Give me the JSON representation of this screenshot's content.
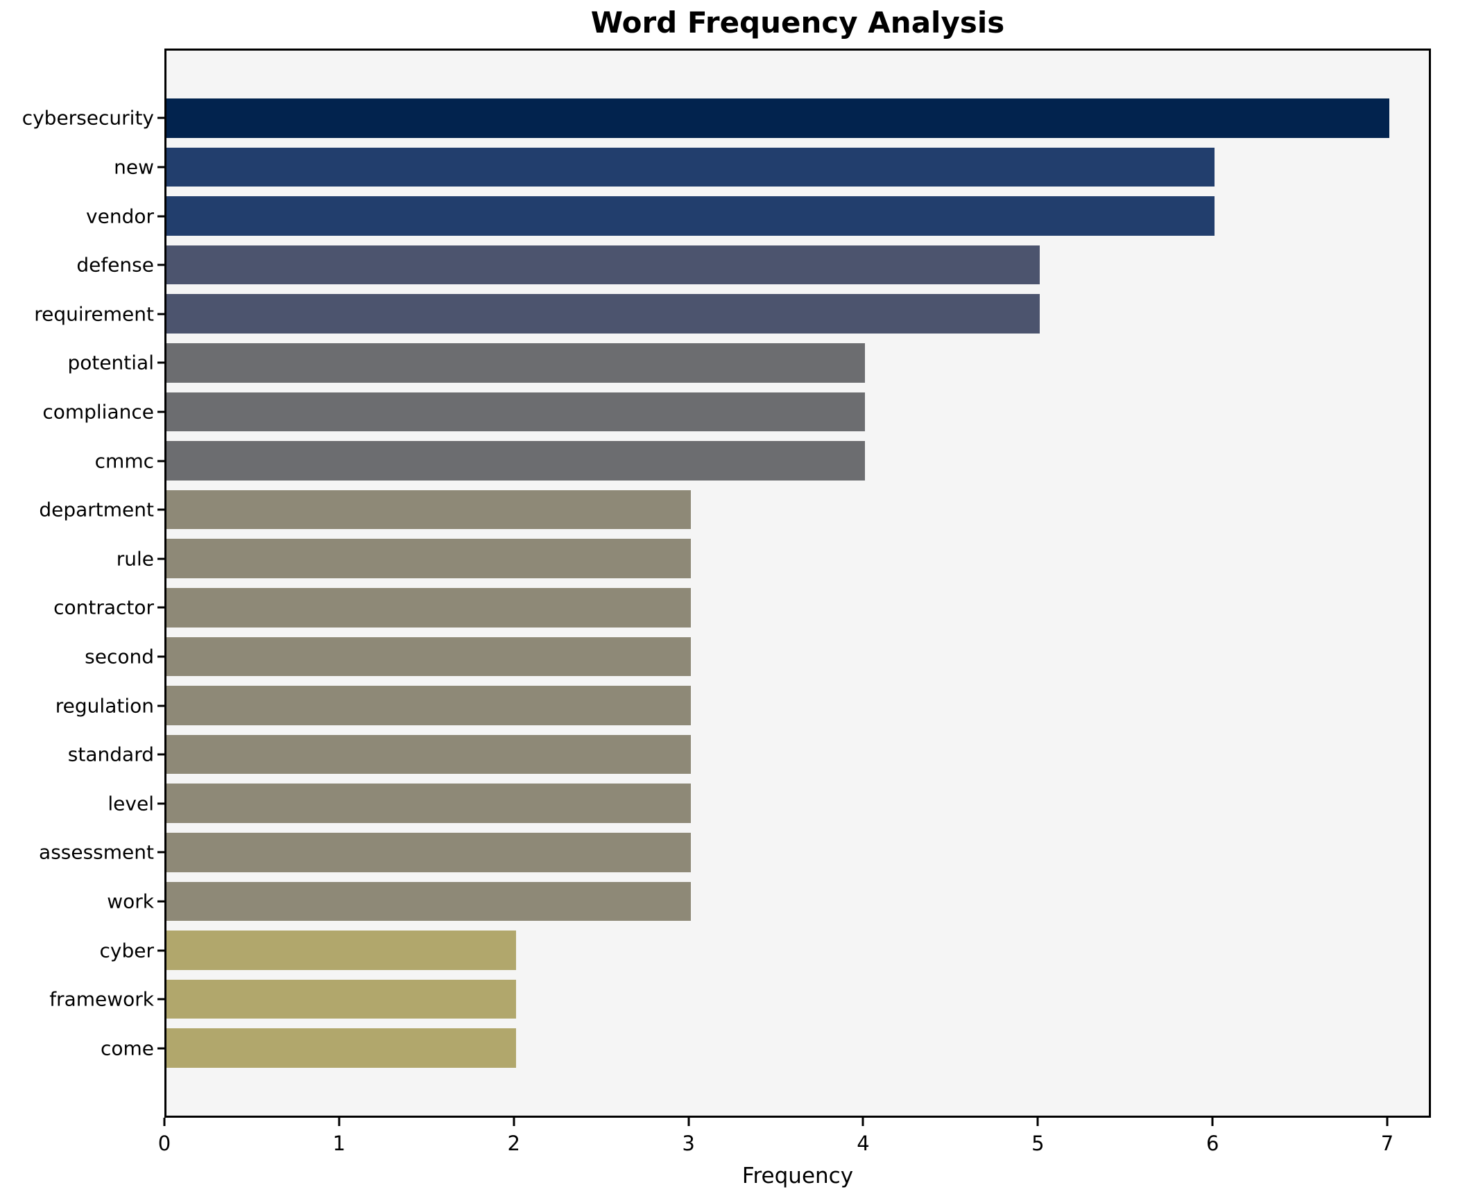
{
  "chart_data": {
    "type": "bar",
    "orientation": "horizontal",
    "title": "Word Frequency Analysis",
    "xlabel": "Frequency",
    "ylabel": "",
    "categories": [
      "cybersecurity",
      "new",
      "vendor",
      "defense",
      "requirement",
      "potential",
      "compliance",
      "cmmc",
      "department",
      "rule",
      "contractor",
      "second",
      "regulation",
      "standard",
      "level",
      "assessment",
      "work",
      "cyber",
      "framework",
      "come"
    ],
    "values": [
      7,
      6,
      6,
      5,
      5,
      4,
      4,
      4,
      3,
      3,
      3,
      3,
      3,
      3,
      3,
      3,
      3,
      2,
      2,
      2
    ],
    "xlim": [
      0,
      7.25
    ],
    "xticks": [
      0,
      1,
      2,
      3,
      4,
      5,
      6,
      7
    ],
    "grid": false,
    "legend": null,
    "colors_by_value": {
      "7": "#02234e",
      "6": "#223e6d",
      "5": "#4c546e",
      "4": "#6c6d70",
      "3": "#8e8977",
      "2": "#b1a76c"
    },
    "plot_background": "#f5f5f5",
    "figure_background": "#ffffff",
    "spine_color": "#000000"
  }
}
